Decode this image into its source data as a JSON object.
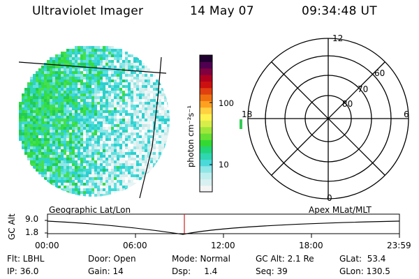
{
  "header": {
    "instrument": "Ultraviolet Imager",
    "date": "14 May 07",
    "time": "09:34:48 UT"
  },
  "colorbar": {
    "unit_label": "photon cm⁻²s⁻¹",
    "tick_labels": [
      "100",
      "10"
    ],
    "colors": [
      "#f4f4f4",
      "#d8f0f0",
      "#bfeeee",
      "#8fe6e6",
      "#4cd9d9",
      "#2fd6b0",
      "#22d47a",
      "#33d933",
      "#66e033",
      "#a0e63a",
      "#d7ee4a",
      "#fff250",
      "#ffd040",
      "#ffa020",
      "#f07010",
      "#e04010",
      "#cc1010",
      "#b00020",
      "#800040",
      "#500050",
      "#200030"
    ]
  },
  "polar_plot": {
    "mlt_labels": {
      "top": "12",
      "left": "18",
      "right": "6",
      "bottom": "0"
    },
    "lat_labels": [
      "60",
      "70",
      "80"
    ]
  },
  "timeline": {
    "left_title": "Geographic Lat/Lon",
    "right_title": "Apex  MLat/MLT",
    "y_axis_label": "GC Alt",
    "y_max": "9.0",
    "y_min": "1.8",
    "x_ticks": [
      "00:00",
      "06:00",
      "12:00",
      "18:00",
      "23:59"
    ]
  },
  "info": {
    "flt": "Flt: LBHL",
    "ip": "IP: 36.0",
    "door": "Door: Open",
    "gain": "Gain: 14",
    "mode": "Mode: Normal",
    "dsp": "Dsp:     1.4",
    "gc_alt": "GC Alt: 2.1 Re",
    "seq": "Seq: 39",
    "glat": "GLat:  53.4",
    "glon": "GLon: 130.5"
  }
}
